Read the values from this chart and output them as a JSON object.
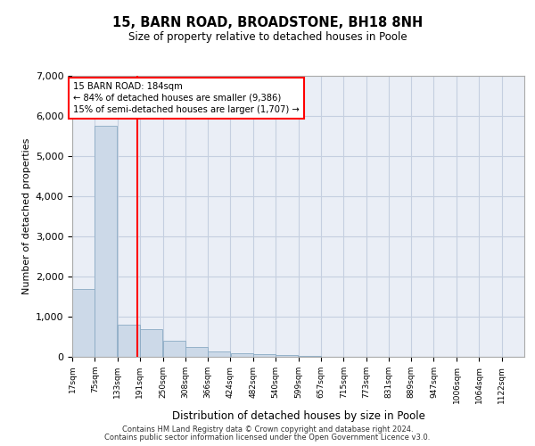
{
  "title": "15, BARN ROAD, BROADSTONE, BH18 8NH",
  "subtitle": "Size of property relative to detached houses in Poole",
  "xlabel": "Distribution of detached houses by size in Poole",
  "ylabel": "Number of detached properties",
  "bar_color": "#ccd9e8",
  "bar_edge_color": "#8aaac4",
  "grid_color": "#c5cfe0",
  "background_color": "#eaeef6",
  "property_line_x": 184,
  "annotation_line1": "15 BARN ROAD: 184sqm",
  "annotation_line2": "← 84% of detached houses are smaller (9,386)",
  "annotation_line3": "15% of semi-detached houses are larger (1,707) →",
  "footer1": "Contains HM Land Registry data © Crown copyright and database right 2024.",
  "footer2": "Contains public sector information licensed under the Open Government Licence v3.0.",
  "bins": [
    17,
    75,
    133,
    191,
    250,
    308,
    366,
    424,
    482,
    540,
    599,
    657,
    715,
    773,
    831,
    889,
    947,
    1006,
    1064,
    1122,
    1180
  ],
  "counts": [
    1700,
    5750,
    800,
    700,
    400,
    250,
    140,
    95,
    75,
    55,
    20,
    4,
    2,
    1,
    0,
    0,
    0,
    0,
    0,
    0
  ],
  "ylim": [
    0,
    7000
  ],
  "yticks": [
    0,
    1000,
    2000,
    3000,
    4000,
    5000,
    6000,
    7000
  ]
}
